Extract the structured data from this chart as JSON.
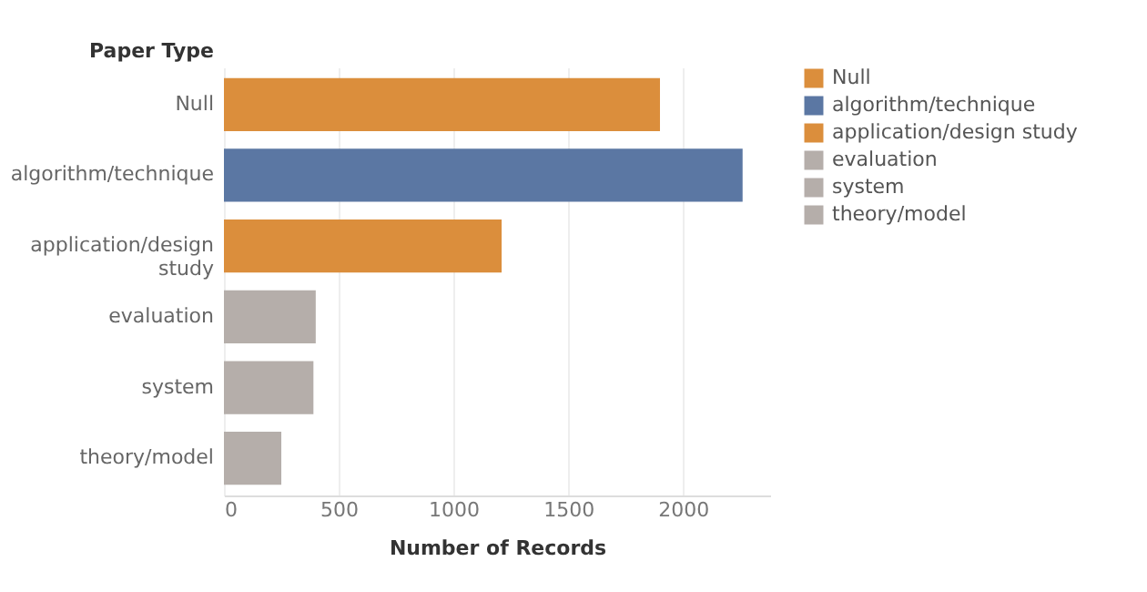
{
  "chart_data": {
    "type": "bar",
    "orientation": "horizontal",
    "ylabel": "Paper Type",
    "xlabel": "Number of Records",
    "categories": [
      "Null",
      "algorithm/technique",
      "application/design study",
      "evaluation",
      "system",
      "theory/model"
    ],
    "series": [
      {
        "name": "Null",
        "color": "#db8e3c",
        "values": [
          1900,
          null,
          null,
          null,
          null,
          null
        ]
      },
      {
        "name": "algorithm/technique",
        "color": "#5b77a3",
        "values": [
          null,
          2260,
          null,
          null,
          null,
          null
        ]
      },
      {
        "name": "application/design study",
        "color": "#db8e3c",
        "values": [
          null,
          null,
          1210,
          null,
          null,
          null
        ]
      },
      {
        "name": "evaluation",
        "color": "#b5aeaa",
        "values": [
          null,
          null,
          null,
          400,
          null,
          null
        ]
      },
      {
        "name": "system",
        "color": "#b5aeaa",
        "values": [
          null,
          null,
          null,
          null,
          390,
          null
        ]
      },
      {
        "name": "theory/model",
        "color": "#b5aeaa",
        "values": [
          null,
          null,
          null,
          null,
          null,
          250
        ]
      }
    ],
    "xlim": [
      0,
      2380
    ],
    "xticks": [
      0,
      500,
      1000,
      1500,
      2000
    ],
    "grid": "x",
    "legend": "right"
  }
}
